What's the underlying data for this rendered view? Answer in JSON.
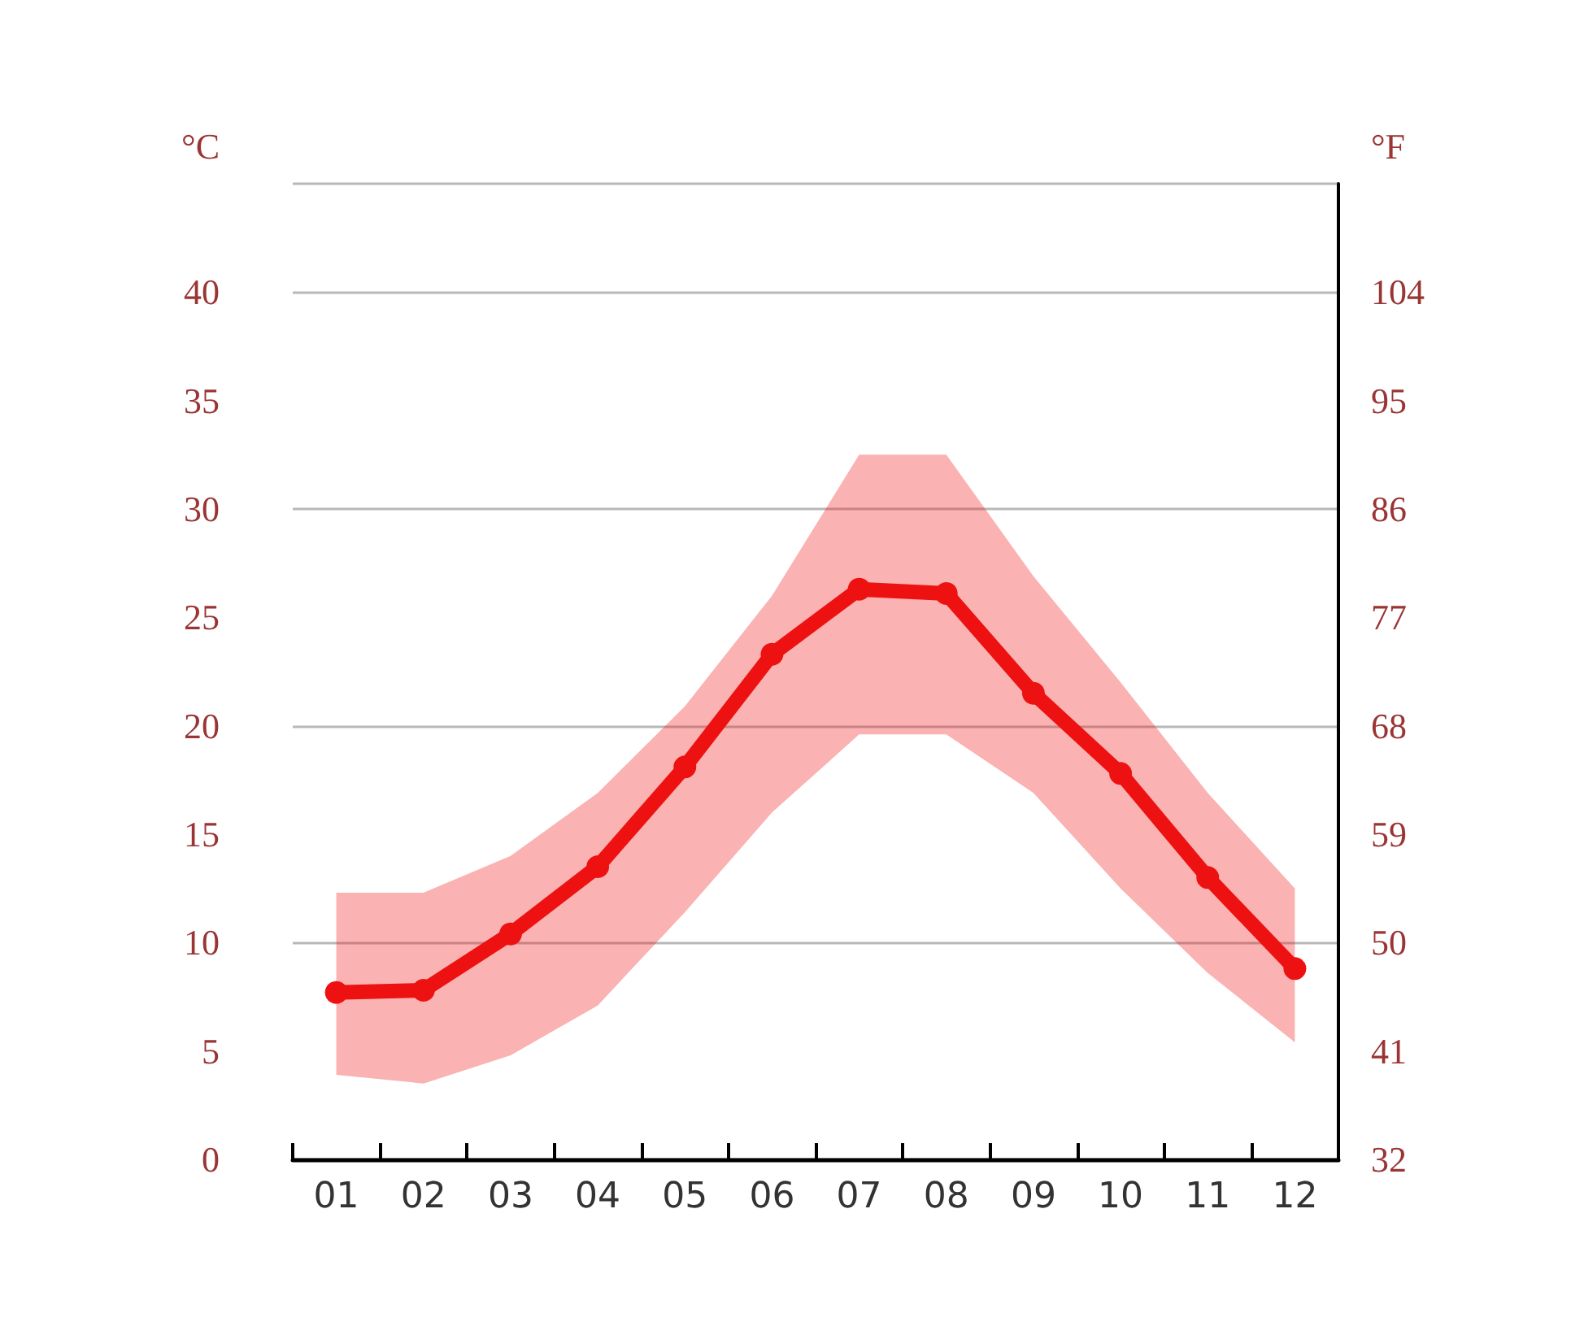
{
  "chart_data": {
    "type": "line",
    "ylabel": "°C",
    "y2label": "°F",
    "categories": [
      "01",
      "02",
      "03",
      "04",
      "05",
      "06",
      "07",
      "08",
      "09",
      "10",
      "11",
      "12"
    ],
    "series": [
      {
        "color": "#ee1111",
        "values": [
          7.7,
          7.8,
          10.4,
          13.5,
          18.1,
          23.3,
          26.3,
          26.1,
          21.5,
          17.8,
          13.0,
          8.8
        ],
        "lower": [
          3.9,
          3.5,
          4.8,
          7.1,
          11.4,
          16.0,
          19.6,
          19.6,
          16.9,
          12.5,
          8.6,
          5.4
        ],
        "upper": [
          12.3,
          12.3,
          14.0,
          16.9,
          20.9,
          26.0,
          32.5,
          32.5,
          26.9,
          22.0,
          16.9,
          12.5
        ]
      }
    ],
    "ylim": [
      0,
      45
    ],
    "yticks": [
      0,
      5,
      10,
      15,
      20,
      25,
      30,
      35,
      40
    ],
    "y2lim": [
      32,
      113
    ],
    "y2ticks": [
      32,
      41,
      50,
      59,
      68,
      77,
      86,
      95,
      104
    ],
    "grid": "y",
    "marker": "circle",
    "line_style": "solid"
  }
}
